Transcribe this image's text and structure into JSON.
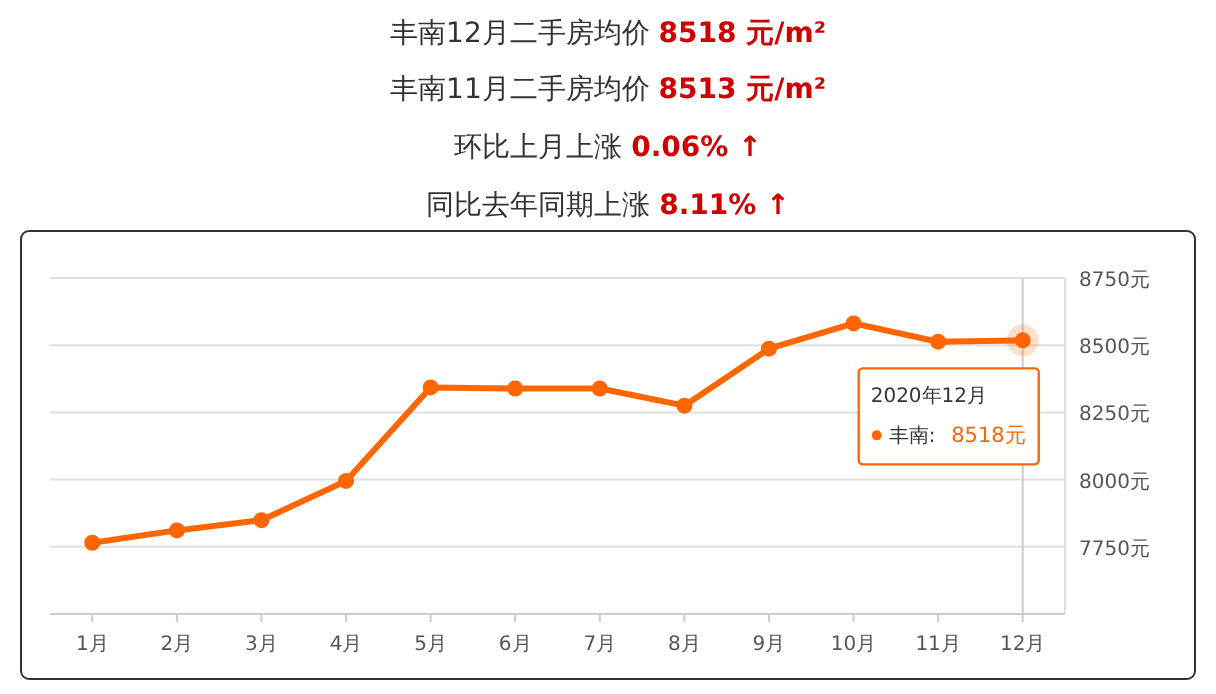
{
  "chart_data": {
    "type": "line",
    "title": "丰南12月二手房均价 8518 元/m²",
    "subtitle": "丰南11月二手房均价 8513 元/m²",
    "annotations": [
      "环比上月上涨 0.06% ↑",
      "同比去年同期上涨 8.11% ↑",
      {
        "text": "2020年12月",
        "x": "12月",
        "y": 8518
      },
      "丰南: 8518元"
    ],
    "categories": [
      "1月",
      "2月",
      "3月",
      "4月",
      "5月",
      "6月",
      "7月",
      "8月",
      "9月",
      "10月",
      "11月",
      "12月"
    ],
    "series": [
      {
        "color": "#ff6600",
        "values": [
          7765,
          7811,
          7849,
          7995,
          8343,
          8339,
          8339,
          8275,
          8487,
          8581,
          8513,
          8518
        ]
      }
    ],
    "ylim": [
      7500,
      8750
    ],
    "yticks": [
      {
        "value": 7750,
        "label": "7750元"
      },
      {
        "value": 8000,
        "label": "8000元"
      },
      {
        "value": 8250,
        "label": "8250元"
      },
      {
        "value": 8500,
        "label": "8500元"
      },
      {
        "value": 8750,
        "label": "8750元"
      }
    ],
    "ref_lines": [
      {
        "axis": "x",
        "value": "12月",
        "color": "#cccccc"
      }
    ],
    "grid": "y",
    "marker": "circle",
    "line_style": "solid"
  }
}
